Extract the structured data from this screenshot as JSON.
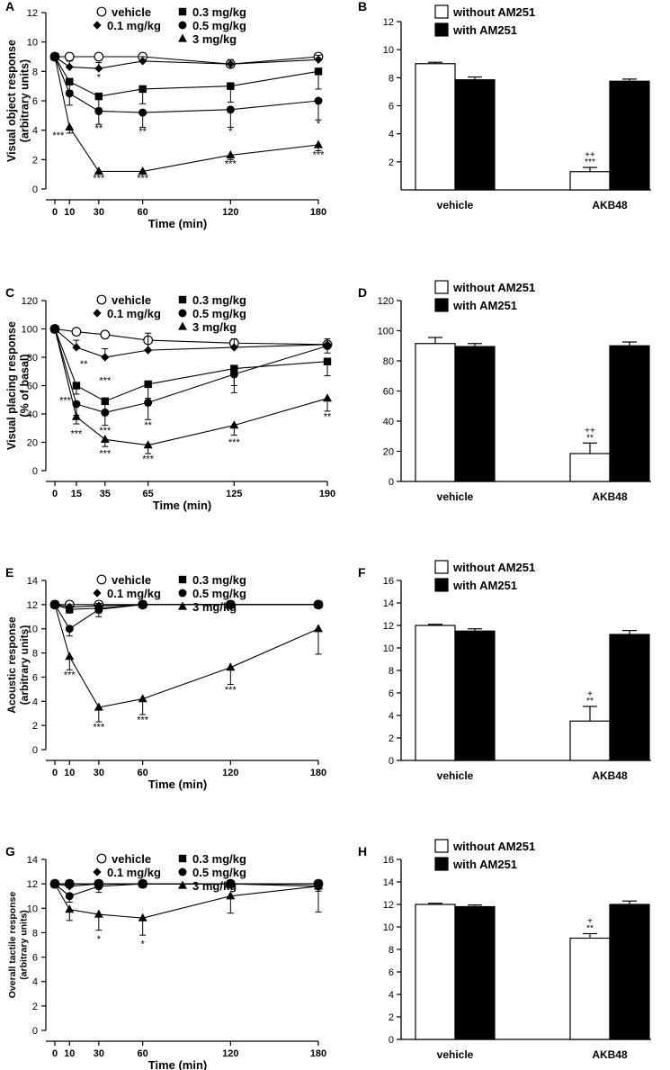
{
  "chart_data": [
    {
      "panel": "A",
      "type": "line",
      "ylabel_lines": [
        "Visual object response",
        "(arbitrary units)"
      ],
      "xlabel": "Time (min)",
      "x": [
        0,
        10,
        30,
        60,
        120,
        180
      ],
      "xticks": [
        0,
        10,
        30,
        60,
        120,
        180
      ],
      "xlim": [
        0,
        180
      ],
      "ylim": [
        0,
        12
      ],
      "yticks": [
        0,
        2,
        4,
        6,
        8,
        10,
        12
      ],
      "series": [
        {
          "name": "vehicle",
          "marker": "circle-open",
          "values": [
            9,
            9,
            9,
            9,
            8.5,
            9
          ],
          "errors": [
            0.2,
            0.2,
            0.2,
            0.2,
            0.2,
            0.2
          ]
        },
        {
          "name": "0.1 mg/kg",
          "marker": "diamond",
          "values": [
            9,
            8.3,
            8.2,
            8.7,
            8.5,
            8.8
          ],
          "errors": [
            0.2,
            0.4,
            0.4,
            0.3,
            0.3,
            0.3
          ]
        },
        {
          "name": "0.3 mg/kg",
          "marker": "square",
          "values": [
            9,
            7.3,
            6.3,
            6.8,
            7.0,
            8.0
          ],
          "errors": [
            0.2,
            0.6,
            0.8,
            1.0,
            1.1,
            1.2
          ]
        },
        {
          "name": "0.5 mg/kg",
          "marker": "circle",
          "values": [
            9,
            6.5,
            5.3,
            5.2,
            5.4,
            6.0
          ],
          "errors": [
            0.2,
            0.8,
            0.9,
            1.0,
            1.2,
            1.3
          ]
        },
        {
          "name": "3 mg/kg",
          "marker": "triangle",
          "values": [
            9,
            4.2,
            1.2,
            1.2,
            2.3,
            3.0
          ],
          "errors": [
            0.2,
            0.4,
            0.2,
            0.2,
            0.3,
            0.4
          ]
        }
      ],
      "annotations": [
        {
          "text": "*",
          "x": 30,
          "y": 7.25,
          "pos": "above"
        },
        {
          "text": "**",
          "x": 30,
          "y": 4.4,
          "pos": "below"
        },
        {
          "text": "**",
          "x": 60,
          "y": 4.2,
          "pos": "below"
        },
        {
          "text": "*",
          "x": 120,
          "y": 4.2,
          "pos": "below"
        },
        {
          "text": "*",
          "x": 180,
          "y": 4.7,
          "pos": "below"
        },
        {
          "text": "***",
          "x": 10,
          "y": 3.8,
          "pos": "below-left"
        },
        {
          "text": "***",
          "x": 30,
          "y": 1.0,
          "pos": "below"
        },
        {
          "text": "***",
          "x": 60,
          "y": 1.0,
          "pos": "below"
        },
        {
          "text": "***",
          "x": 120,
          "y": 2.0,
          "pos": "below"
        },
        {
          "text": "***",
          "x": 180,
          "y": 2.6,
          "pos": "below"
        }
      ]
    },
    {
      "panel": "B",
      "type": "bar",
      "categories": [
        "vehicle",
        "AKB48"
      ],
      "ylim": [
        0,
        12
      ],
      "yticks": [
        2,
        4,
        6,
        8,
        10,
        12
      ],
      "series": [
        {
          "name": "without AM251",
          "fill": "#ffffff",
          "values": [
            9.0,
            1.3
          ],
          "errors": [
            0.1,
            0.3
          ]
        },
        {
          "name": "with AM251",
          "fill": "#000000",
          "values": [
            7.85,
            7.75
          ],
          "errors": [
            0.2,
            0.15
          ]
        }
      ],
      "annotations": [
        {
          "series": 0,
          "category": 1,
          "lines": [
            "++",
            "***"
          ]
        }
      ]
    },
    {
      "panel": "C",
      "type": "line",
      "ylabel_lines": [
        "Visual placing response",
        "(% of basal)"
      ],
      "xlabel": "Time (min)",
      "x": [
        0,
        15,
        35,
        65,
        125,
        190
      ],
      "xticks": [
        0,
        15,
        35,
        65,
        125,
        190
      ],
      "xlim": [
        0,
        190
      ],
      "ylim": [
        0,
        120
      ],
      "yticks": [
        0,
        20,
        40,
        60,
        80,
        100,
        120
      ],
      "series": [
        {
          "name": "vehicle",
          "marker": "circle-open",
          "values": [
            100,
            98,
            96,
            92,
            90,
            89
          ],
          "errors": [
            1,
            2,
            2,
            2,
            2,
            2
          ]
        },
        {
          "name": "0.1 mg/kg",
          "marker": "diamond",
          "values": [
            100,
            87,
            80,
            85,
            87,
            89
          ],
          "errors": [
            1,
            5,
            6,
            12,
            6,
            4
          ]
        },
        {
          "name": "0.3 mg/kg",
          "marker": "square",
          "values": [
            100,
            60,
            49,
            61,
            72,
            77
          ],
          "errors": [
            1,
            6,
            7,
            10,
            12,
            10
          ]
        },
        {
          "name": "0.5 mg/kg",
          "marker": "circle",
          "values": [
            100,
            47,
            41,
            48,
            68,
            88
          ],
          "errors": [
            1,
            8,
            9,
            12,
            13,
            5
          ]
        },
        {
          "name": "3 mg/kg",
          "marker": "triangle",
          "values": [
            100,
            38,
            22,
            18,
            32,
            51
          ],
          "errors": [
            1,
            5,
            5,
            6,
            7,
            9
          ]
        }
      ],
      "annotations": [
        {
          "text": "**",
          "x": 15,
          "y": 75,
          "pos": "right"
        },
        {
          "text": "***",
          "x": 35,
          "y": 60,
          "pos": "above"
        },
        {
          "text": "***",
          "x": 15,
          "y": 51,
          "pos": "left"
        },
        {
          "text": "***",
          "x": 15,
          "y": 29,
          "pos": "below"
        },
        {
          "text": "***",
          "x": 35,
          "y": 31,
          "pos": "below"
        },
        {
          "text": "***",
          "x": 35,
          "y": 15,
          "pos": "below"
        },
        {
          "text": "**",
          "x": 65,
          "y": 35,
          "pos": "below"
        },
        {
          "text": "***",
          "x": 65,
          "y": 11,
          "pos": "below"
        },
        {
          "text": "***",
          "x": 125,
          "y": 23,
          "pos": "below"
        },
        {
          "text": "**",
          "x": 190,
          "y": 41,
          "pos": "below"
        }
      ]
    },
    {
      "panel": "D",
      "type": "bar",
      "categories": [
        "vehicle",
        "AKB48"
      ],
      "ylim": [
        0,
        120
      ],
      "yticks": [
        0,
        20,
        40,
        60,
        80,
        100,
        120
      ],
      "series": [
        {
          "name": "without AM251",
          "fill": "#ffffff",
          "values": [
            91.5,
            18.5
          ],
          "errors": [
            4,
            7
          ]
        },
        {
          "name": "with AM251",
          "fill": "#000000",
          "values": [
            89.5,
            90.0
          ],
          "errors": [
            2,
            2.5
          ]
        }
      ],
      "annotations": [
        {
          "series": 0,
          "category": 1,
          "lines": [
            "++",
            "**"
          ]
        }
      ]
    },
    {
      "panel": "E",
      "type": "line",
      "ylabel_lines": [
        "Acoustic response",
        "(arbitrary units)"
      ],
      "xlabel": "Time (min)",
      "x": [
        0,
        10,
        30,
        60,
        120,
        180
      ],
      "xticks": [
        0,
        10,
        30,
        60,
        120,
        180
      ],
      "xlim": [
        0,
        180
      ],
      "ylim": [
        0,
        14
      ],
      "yticks": [
        0,
        2,
        4,
        6,
        8,
        10,
        12,
        14
      ],
      "series": [
        {
          "name": "vehicle",
          "marker": "circle-open",
          "values": [
            12,
            12,
            12,
            12,
            12,
            12
          ],
          "errors": [
            0,
            0,
            0,
            0,
            0,
            0
          ]
        },
        {
          "name": "0.1 mg/kg",
          "marker": "diamond",
          "values": [
            12,
            11.8,
            11.9,
            12,
            12,
            12
          ],
          "errors": [
            0,
            0.2,
            0.2,
            0,
            0,
            0
          ]
        },
        {
          "name": "0.3 mg/kg",
          "marker": "square",
          "values": [
            12,
            11.6,
            11.7,
            12,
            12,
            12
          ],
          "errors": [
            0,
            0.3,
            0.4,
            0,
            0,
            0
          ]
        },
        {
          "name": "0.5 mg/kg",
          "marker": "circle",
          "values": [
            12,
            10.0,
            11.6,
            12,
            12,
            12
          ],
          "errors": [
            0,
            0.6,
            0.6,
            0,
            0,
            0
          ]
        },
        {
          "name": "3 mg/kg",
          "marker": "triangle",
          "values": [
            12,
            7.7,
            3.5,
            4.2,
            6.8,
            10.0
          ],
          "errors": [
            0,
            1.1,
            1.2,
            1.3,
            1.4,
            2.1
          ]
        }
      ],
      "annotations": [
        {
          "text": "***",
          "x": 10,
          "y": 6.5,
          "pos": "below"
        },
        {
          "text": "***",
          "x": 30,
          "y": 2.2,
          "pos": "below"
        },
        {
          "text": "***",
          "x": 60,
          "y": 2.8,
          "pos": "below"
        },
        {
          "text": "***",
          "x": 120,
          "y": 5.3,
          "pos": "below"
        }
      ]
    },
    {
      "panel": "F",
      "type": "bar",
      "categories": [
        "vehicle",
        "AKB48"
      ],
      "ylim": [
        0,
        16
      ],
      "yticks": [
        0,
        2,
        4,
        6,
        8,
        10,
        12,
        14,
        16
      ],
      "series": [
        {
          "name": "without AM251",
          "fill": "#ffffff",
          "values": [
            12.0,
            3.5
          ],
          "errors": [
            0.1,
            1.3
          ]
        },
        {
          "name": "with AM251",
          "fill": "#000000",
          "values": [
            11.5,
            11.2
          ],
          "errors": [
            0.2,
            0.35
          ]
        }
      ],
      "annotations": [
        {
          "series": 0,
          "category": 1,
          "lines": [
            "+",
            "**"
          ]
        }
      ]
    },
    {
      "panel": "G",
      "type": "line",
      "ylabel_lines": [
        "Overall tactile response",
        "(arbitrary units)"
      ],
      "xlabel": "Time (min)",
      "x": [
        0,
        10,
        30,
        60,
        120,
        180
      ],
      "xticks": [
        0,
        10,
        30,
        60,
        120,
        180
      ],
      "xlim": [
        0,
        180
      ],
      "ylim": [
        0,
        14
      ],
      "yticks": [
        0,
        2,
        4,
        6,
        8,
        10,
        12,
        14
      ],
      "series": [
        {
          "name": "vehicle",
          "marker": "circle-open",
          "values": [
            12,
            12,
            12,
            12,
            12,
            12
          ],
          "errors": [
            0,
            0,
            0,
            0,
            0,
            0
          ]
        },
        {
          "name": "0.1 mg/kg",
          "marker": "diamond",
          "values": [
            12,
            11.8,
            12,
            12,
            12,
            12
          ],
          "errors": [
            0,
            0.2,
            0,
            0,
            0,
            0
          ]
        },
        {
          "name": "0.3 mg/kg",
          "marker": "square",
          "values": [
            12,
            12,
            12,
            12,
            12,
            12
          ],
          "errors": [
            0,
            0.2,
            0.2,
            0,
            0,
            0
          ]
        },
        {
          "name": "0.5 mg/kg",
          "marker": "circle",
          "values": [
            12,
            11.0,
            11.8,
            12,
            12,
            11.8
          ],
          "errors": [
            0,
            0.5,
            0.5,
            0,
            0,
            0.4
          ]
        },
        {
          "name": "3 mg/kg",
          "marker": "triangle",
          "values": [
            12,
            9.9,
            9.5,
            9.2,
            11.0,
            11.8
          ],
          "errors": [
            0,
            0.9,
            1.3,
            1.4,
            1.4,
            2.1
          ]
        }
      ],
      "annotations": [
        {
          "text": "*",
          "x": 30,
          "y": 7.8,
          "pos": "below"
        },
        {
          "text": "*",
          "x": 60,
          "y": 7.4,
          "pos": "below"
        }
      ]
    },
    {
      "panel": "H",
      "type": "bar",
      "categories": [
        "vehicle",
        "AKB48"
      ],
      "ylim": [
        0,
        16
      ],
      "yticks": [
        0,
        2,
        4,
        6,
        8,
        10,
        12,
        14,
        16
      ],
      "series": [
        {
          "name": "without AM251",
          "fill": "#ffffff",
          "values": [
            12.0,
            9.0
          ],
          "errors": [
            0.1,
            0.4
          ]
        },
        {
          "name": "with AM251",
          "fill": "#000000",
          "values": [
            11.8,
            12.0
          ],
          "errors": [
            0.15,
            0.3
          ]
        }
      ],
      "annotations": [
        {
          "series": 0,
          "category": 1,
          "lines": [
            "+",
            "**"
          ]
        }
      ]
    }
  ]
}
